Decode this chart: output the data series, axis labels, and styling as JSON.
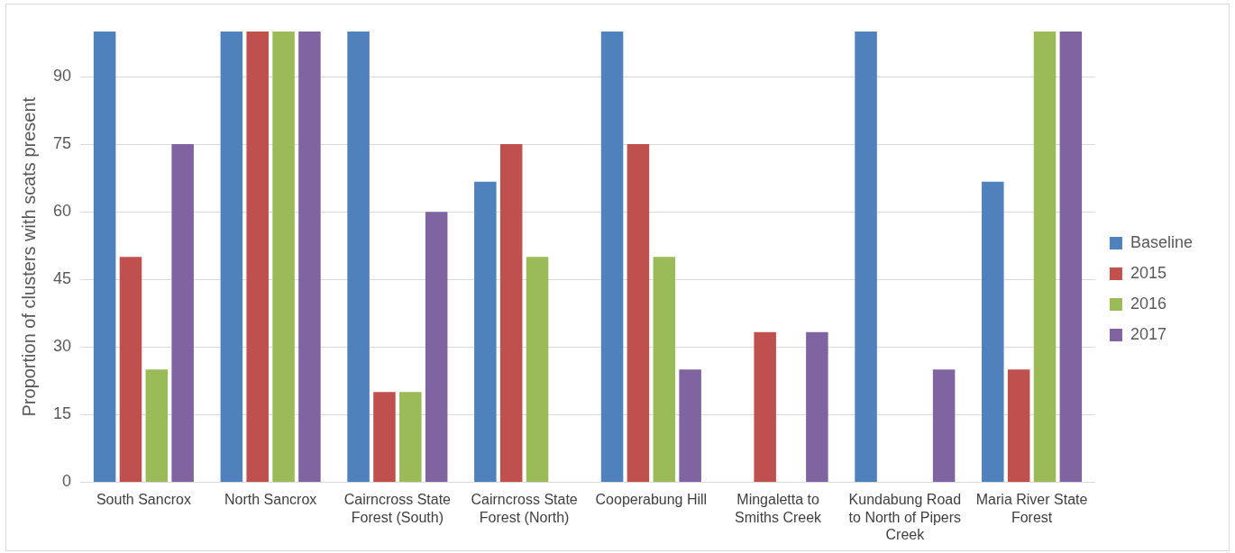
{
  "chart_data": {
    "type": "bar",
    "ylabel": "Proportion of clusters with scats present",
    "categories": [
      "South Sancrox",
      "North Sancrox",
      "Cairncross State Forest (South)",
      "Cairncross State Forest (North)",
      "Cooperabung Hill",
      "Mingaletta to Smiths Creek",
      "Kundabung Road to North of Pipers Creek",
      "Maria River State Forest"
    ],
    "series": [
      {
        "name": "Baseline",
        "color": "#4f81bd",
        "values": [
          100,
          100,
          100,
          66.7,
          100,
          0,
          100,
          66.7
        ]
      },
      {
        "name": "2015",
        "color": "#c0504d",
        "values": [
          50,
          100,
          20,
          75,
          75,
          33.3,
          0,
          25
        ]
      },
      {
        "name": "2016",
        "color": "#9bbb59",
        "values": [
          25,
          100,
          20,
          50,
          50,
          0,
          0,
          100
        ]
      },
      {
        "name": "2017",
        "color": "#8064a2",
        "values": [
          75,
          100,
          60,
          0,
          25,
          33.3,
          25,
          100
        ]
      }
    ],
    "ylim": [
      0,
      100
    ],
    "yticks": [
      0,
      15,
      30,
      45,
      60,
      75,
      90
    ],
    "grid": "y",
    "legend": "right"
  }
}
